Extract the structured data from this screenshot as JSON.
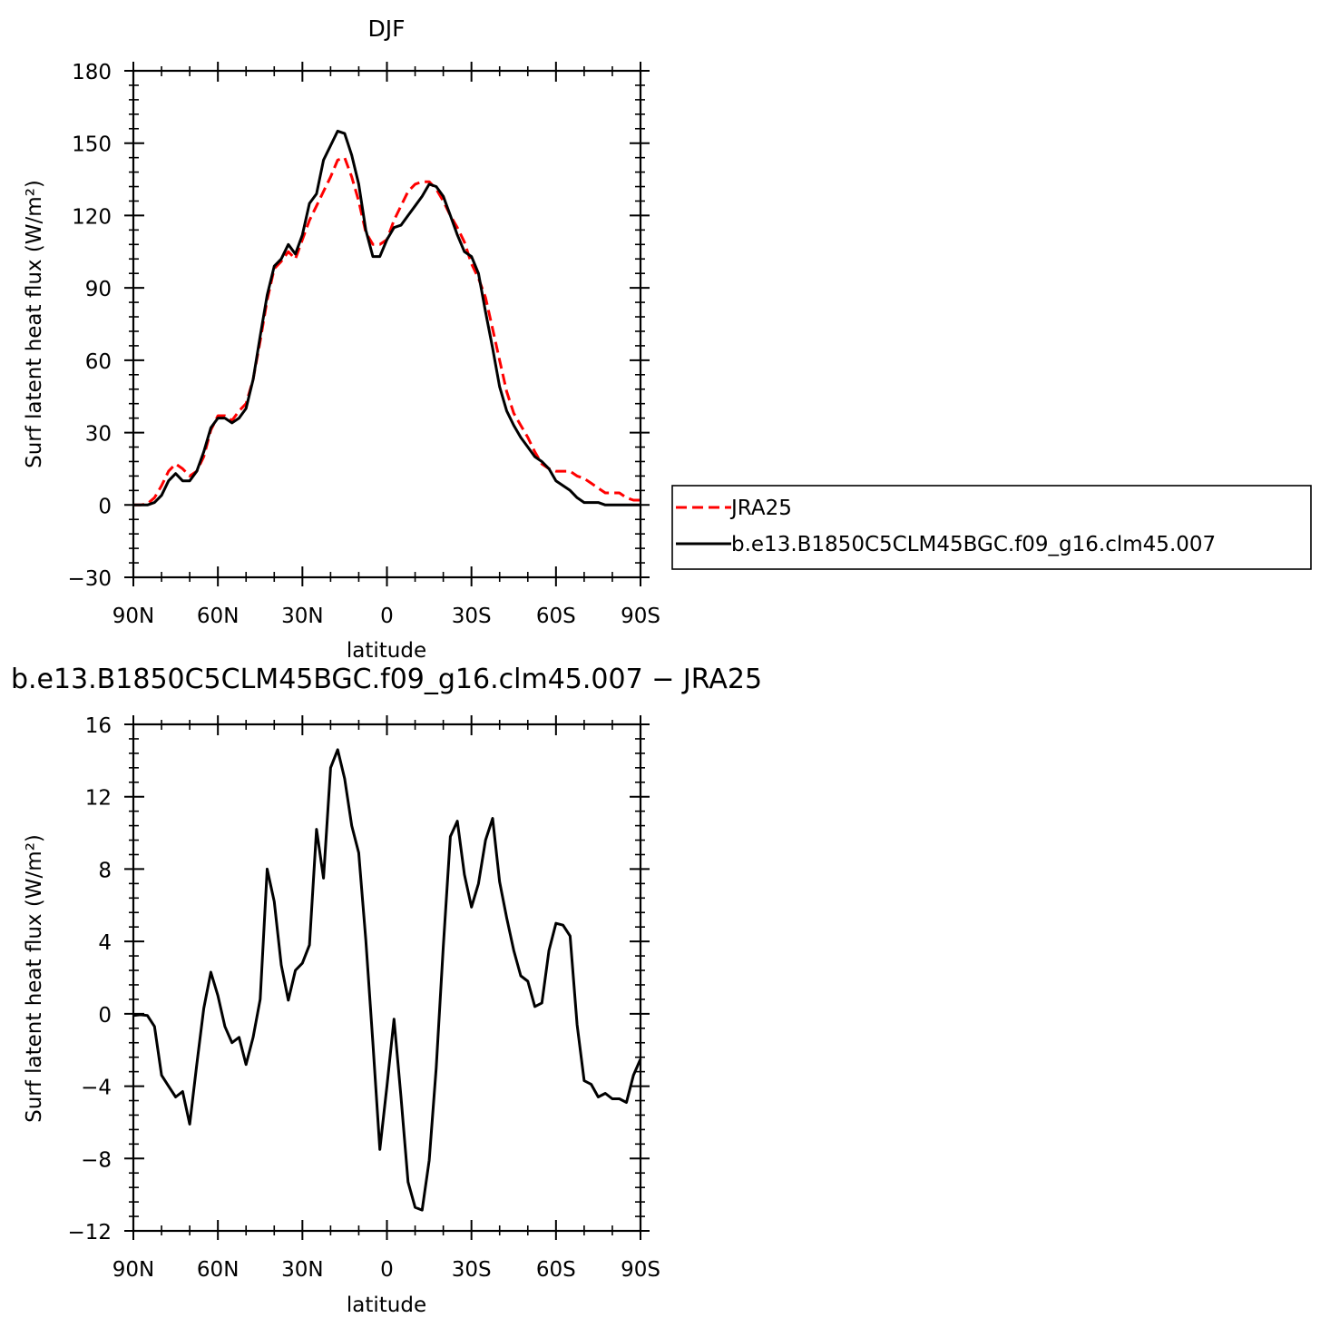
{
  "chart_data": [
    {
      "type": "line",
      "title": "DJF",
      "xlabel": "latitude",
      "ylabel": "Surf latent heat flux (W/m²)",
      "xlim": [
        90,
        -90
      ],
      "ylim": [
        -30,
        180
      ],
      "y_ticks": [
        -30,
        0,
        30,
        60,
        90,
        120,
        150,
        180
      ],
      "y_tick_labels": [
        "−30",
        "0",
        "30",
        "60",
        "90",
        "120",
        "150",
        "180"
      ],
      "x_ticks": [
        90,
        60,
        30,
        0,
        -30,
        -60,
        -90
      ],
      "x_tick_labels": [
        "90N",
        "60N",
        "30N",
        "0",
        "30S",
        "60S",
        "90S"
      ],
      "grid": false,
      "legend_position": "right",
      "series": [
        {
          "name": "JRA25",
          "color": "#ff0000",
          "dash": "dashed",
          "x": [
            90,
            87.5,
            85,
            82.5,
            80,
            77.5,
            75,
            72.5,
            70,
            67.5,
            65,
            62.5,
            60,
            57.5,
            55,
            52.5,
            50,
            47.5,
            45,
            42.5,
            40,
            37.5,
            35,
            32.5,
            30,
            27.5,
            25,
            22.5,
            20,
            17.5,
            15,
            12.5,
            10,
            7.5,
            5,
            2.5,
            0,
            -2.5,
            -5,
            -7.5,
            -10,
            -12.5,
            -15,
            -17.5,
            -20,
            -22.5,
            -25,
            -27.5,
            -30,
            -32.5,
            -35,
            -37.5,
            -40,
            -42.5,
            -45,
            -47.5,
            -50,
            -52.5,
            -55,
            -57.5,
            -60,
            -62.5,
            -65,
            -67.5,
            -70,
            -72.5,
            -75,
            -77.5,
            -80,
            -82.5,
            -85,
            -87.5,
            -90
          ],
          "values": [
            0,
            0,
            0.5,
            3,
            8,
            14,
            17,
            15,
            12,
            14,
            20,
            31,
            37,
            37,
            35,
            39,
            42,
            52,
            68,
            85,
            98,
            101,
            105,
            102,
            110,
            118,
            124,
            130,
            136,
            143,
            144,
            136,
            126,
            113,
            108,
            108,
            110,
            118,
            124,
            130,
            133,
            134,
            134,
            131,
            126,
            120,
            115,
            109,
            100,
            94,
            86,
            73,
            60,
            47,
            38,
            33,
            28,
            22,
            17,
            15,
            14,
            14,
            14,
            12,
            11,
            9,
            7,
            5,
            5,
            5,
            3,
            2,
            2
          ]
        },
        {
          "name": "b.e13.B1850C5CLM45BGC.f09_g16.clm45.007",
          "color": "#000000",
          "dash": "solid",
          "x": [
            90,
            87.5,
            85,
            82.5,
            80,
            77.5,
            75,
            72.5,
            70,
            67.5,
            65,
            62.5,
            60,
            57.5,
            55,
            52.5,
            50,
            47.5,
            45,
            42.5,
            40,
            37.5,
            35,
            32.5,
            30,
            27.5,
            25,
            22.5,
            20,
            17.5,
            15,
            12.5,
            10,
            7.5,
            5,
            2.5,
            0,
            -2.5,
            -5,
            -7.5,
            -10,
            -12.5,
            -15,
            -17.5,
            -20,
            -22.5,
            -25,
            -27.5,
            -30,
            -32.5,
            -35,
            -37.5,
            -40,
            -42.5,
            -45,
            -47.5,
            -50,
            -52.5,
            -55,
            -57.5,
            -60,
            -62.5,
            -65,
            -67.5,
            -70,
            -72.5,
            -75,
            -77.5,
            -80,
            -82.5,
            -85,
            -87.5,
            -90
          ],
          "values": [
            0,
            0,
            0,
            1,
            4,
            10,
            13,
            10,
            10,
            14,
            22,
            32,
            36,
            36,
            34,
            36,
            40,
            52,
            70,
            87,
            99,
            102,
            108,
            104,
            112,
            125,
            129,
            143,
            149,
            155,
            154,
            145,
            133,
            114,
            103,
            103,
            110,
            115,
            116,
            120,
            124,
            128,
            133,
            132,
            128,
            120,
            112,
            105,
            103,
            96,
            80,
            65,
            49,
            39,
            33,
            28,
            24,
            20,
            18,
            15,
            10,
            8,
            6,
            3,
            1,
            1,
            1,
            0,
            0,
            0,
            0,
            0,
            0
          ]
        }
      ]
    },
    {
      "type": "line",
      "title": "b.e13.B1850C5CLM45BGC.f09_g16.clm45.007 − JRA25",
      "xlabel": "latitude",
      "ylabel": "Surf latent heat flux (W/m²)",
      "xlim": [
        90,
        -90
      ],
      "ylim": [
        -12,
        16
      ],
      "y_ticks": [
        -12,
        -8,
        -4,
        0,
        4,
        8,
        12,
        16
      ],
      "y_tick_labels": [
        "−12",
        "−8",
        "−4",
        "0",
        "4",
        "8",
        "12",
        "16"
      ],
      "x_ticks": [
        90,
        60,
        30,
        0,
        -30,
        -60,
        -90
      ],
      "x_tick_labels": [
        "90N",
        "60N",
        "30N",
        "0",
        "30S",
        "60S",
        "90S"
      ],
      "grid": false,
      "series": [
        {
          "color": "#000000",
          "dash": "solid",
          "x": [
            90,
            87.5,
            85,
            82.5,
            80,
            77.5,
            75,
            72.5,
            70,
            67.5,
            65,
            62.5,
            60,
            57.5,
            55,
            52.5,
            50,
            47.5,
            45,
            42.5,
            40,
            37.5,
            35,
            32.5,
            30,
            27.5,
            25,
            22.5,
            20,
            17.5,
            15,
            12.5,
            10,
            7.5,
            5,
            2.5,
            0,
            -2.5,
            -5,
            -7.5,
            -10,
            -12.5,
            -15,
            -17.5,
            -20,
            -22.5,
            -25,
            -27.5,
            -30,
            -32.5,
            -35,
            -37.5,
            -40,
            -42.5,
            -45,
            -47.5,
            -50,
            -52.5,
            -55,
            -57.5,
            -60,
            -62.5,
            -65,
            -67.5,
            -70,
            -72.5,
            -75,
            -77.5,
            -80,
            -82.5,
            -85,
            -87.5,
            -90
          ],
          "values": [
            -0.1,
            -0.05,
            -0.1,
            -0.7,
            -3.4,
            -4.0,
            -4.6,
            -4.3,
            -6.1,
            -2.8,
            0.3,
            2.3,
            1.0,
            -0.7,
            -1.6,
            -1.3,
            -2.8,
            -1.3,
            0.8,
            8.0,
            6.2,
            2.7,
            0.75,
            2.4,
            2.8,
            3.8,
            10.2,
            7.5,
            13.6,
            14.6,
            13.0,
            10.4,
            8.9,
            4.1,
            -1.6,
            -7.5,
            -4.0,
            -0.3,
            -4.6,
            -9.3,
            -10.7,
            -10.85,
            -8.1,
            -3.0,
            3.7,
            9.8,
            10.65,
            7.7,
            5.9,
            7.2,
            9.6,
            10.8,
            7.3,
            5.3,
            3.5,
            2.1,
            1.8,
            0.4,
            0.6,
            3.5,
            5.0,
            4.9,
            4.3,
            -0.6,
            -3.7,
            -3.9,
            -4.6,
            -4.4,
            -4.7,
            -4.7,
            -4.9,
            -3.4,
            -2.5
          ]
        }
      ]
    }
  ]
}
